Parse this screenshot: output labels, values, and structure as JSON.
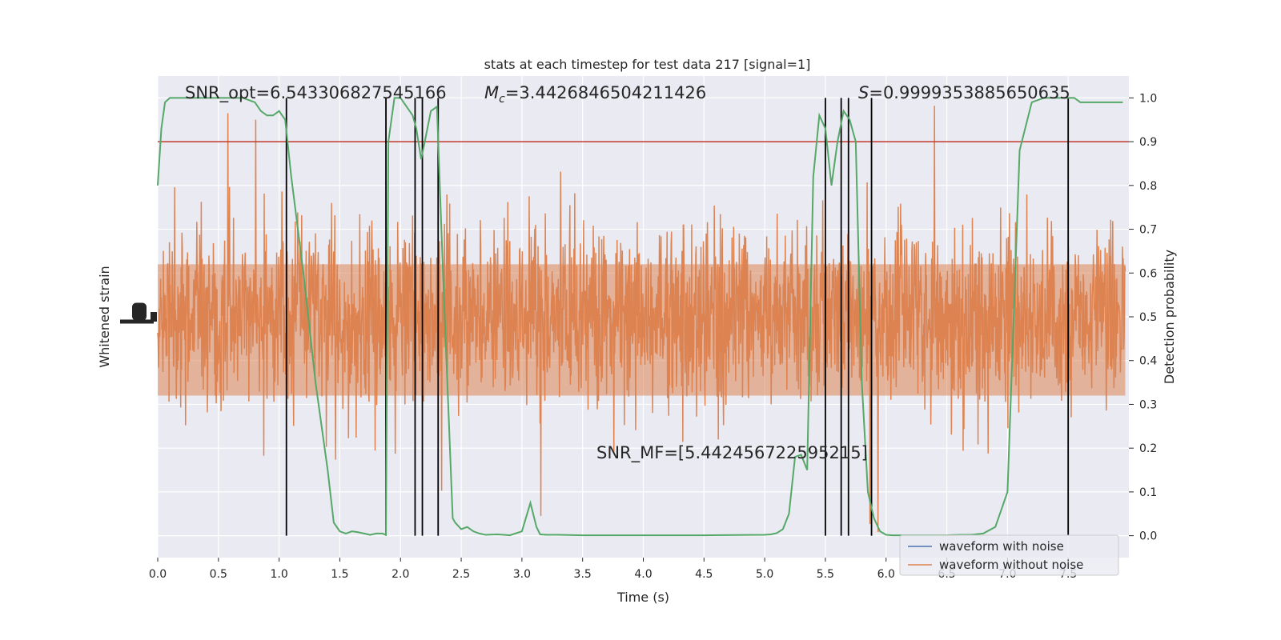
{
  "chart_data": {
    "type": "line",
    "title": "stats at each timestep for test data 217 [signal=1]",
    "xlabel": "Time (s)",
    "ylabel_left": "Whitened strain",
    "ylabel_right": "Detection probability",
    "xlim": [
      0.0,
      8.0
    ],
    "ylim_right": [
      -0.05,
      1.05
    ],
    "grid": true,
    "x_ticks": [
      "0.0",
      "0.5",
      "1.0",
      "1.5",
      "2.0",
      "2.5",
      "3.0",
      "3.5",
      "4.0",
      "4.5",
      "5.0",
      "5.5",
      "6.0",
      "6.5",
      "7.0",
      "7.5"
    ],
    "y_ticks_right": [
      "0.0",
      "0.1",
      "0.2",
      "0.3",
      "0.4",
      "0.5",
      "0.6",
      "0.7",
      "0.8",
      "0.9",
      "1.0"
    ],
    "annotations": {
      "snr_opt": "SNR_opt=6.543306827545166",
      "mc_symbol": "M",
      "mc_sub": "c",
      "mc_value": "=3.4426846504211426",
      "s_symbol": "S",
      "s_value": "=0.9999353885650635",
      "snr_mf": "SNR_MF=[5.442456722595215]"
    },
    "threshold": {
      "y": 0.9,
      "color": "#c0392b"
    },
    "vertical_lines_x": [
      1.06,
      1.88,
      2.12,
      2.18,
      2.31,
      5.5,
      5.63,
      5.69,
      5.88,
      7.5
    ],
    "series": [
      {
        "name": "waveform with noise",
        "color": "#4c72b0"
      },
      {
        "name": "waveform without noise",
        "color": "#dd8452"
      }
    ],
    "detection_probability": {
      "color": "#55a868",
      "x": [
        0.0,
        0.03,
        0.06,
        0.1,
        0.2,
        0.3,
        0.4,
        0.5,
        0.6,
        0.7,
        0.75,
        0.8,
        0.85,
        0.9,
        0.95,
        1.0,
        1.05,
        1.1,
        1.2,
        1.3,
        1.4,
        1.45,
        1.5,
        1.55,
        1.6,
        1.65,
        1.7,
        1.75,
        1.8,
        1.85,
        1.88,
        1.9,
        1.95,
        2.0,
        2.05,
        2.1,
        2.13,
        2.17,
        2.2,
        2.25,
        2.3,
        2.35,
        2.4,
        2.43,
        2.45,
        2.5,
        2.55,
        2.6,
        2.65,
        2.7,
        2.8,
        2.9,
        3.0,
        3.07,
        3.12,
        3.15,
        3.2,
        3.3,
        3.5,
        4.0,
        4.5,
        5.0,
        5.05,
        5.1,
        5.15,
        5.2,
        5.25,
        5.3,
        5.35,
        5.4,
        5.45,
        5.5,
        5.55,
        5.6,
        5.65,
        5.7,
        5.75,
        5.8,
        5.85,
        5.9,
        5.95,
        6.0,
        6.05,
        6.1,
        6.15,
        6.2,
        6.25,
        6.3,
        6.4,
        6.5,
        6.6,
        6.7,
        6.8,
        6.9,
        7.0,
        7.1,
        7.2,
        7.3,
        7.35,
        7.4,
        7.45,
        7.5,
        7.55,
        7.6,
        7.7,
        7.8,
        7.9,
        7.95
      ],
      "y": [
        0.8,
        0.93,
        0.99,
        1.0,
        1.0,
        1.0,
        1.0,
        1.0,
        1.0,
        1.0,
        0.995,
        0.99,
        0.97,
        0.96,
        0.96,
        0.97,
        0.95,
        0.82,
        0.6,
        0.35,
        0.15,
        0.03,
        0.01,
        0.005,
        0.01,
        0.008,
        0.005,
        0.002,
        0.005,
        0.005,
        0.002,
        0.9,
        1.0,
        1.0,
        0.98,
        0.96,
        0.93,
        0.86,
        0.9,
        0.97,
        0.98,
        0.6,
        0.25,
        0.04,
        0.03,
        0.015,
        0.02,
        0.01,
        0.005,
        0.002,
        0.003,
        0.001,
        0.01,
        0.075,
        0.02,
        0.003,
        0.002,
        0.002,
        0.001,
        0.001,
        0.001,
        0.002,
        0.003,
        0.006,
        0.015,
        0.05,
        0.18,
        0.185,
        0.15,
        0.82,
        0.96,
        0.93,
        0.8,
        0.9,
        0.97,
        0.95,
        0.9,
        0.35,
        0.1,
        0.04,
        0.01,
        0.002,
        0.001,
        0.001,
        0.001,
        0.001,
        0.001,
        0.001,
        0.001,
        0.001,
        0.002,
        0.002,
        0.005,
        0.02,
        0.1,
        0.88,
        0.99,
        1.0,
        1.0,
        1.0,
        1.0,
        1.0,
        1.0,
        0.99,
        0.99,
        0.99,
        0.99,
        0.99
      ],
      "y_note": "right axis"
    },
    "legend": {
      "placement": "lower-right"
    }
  }
}
